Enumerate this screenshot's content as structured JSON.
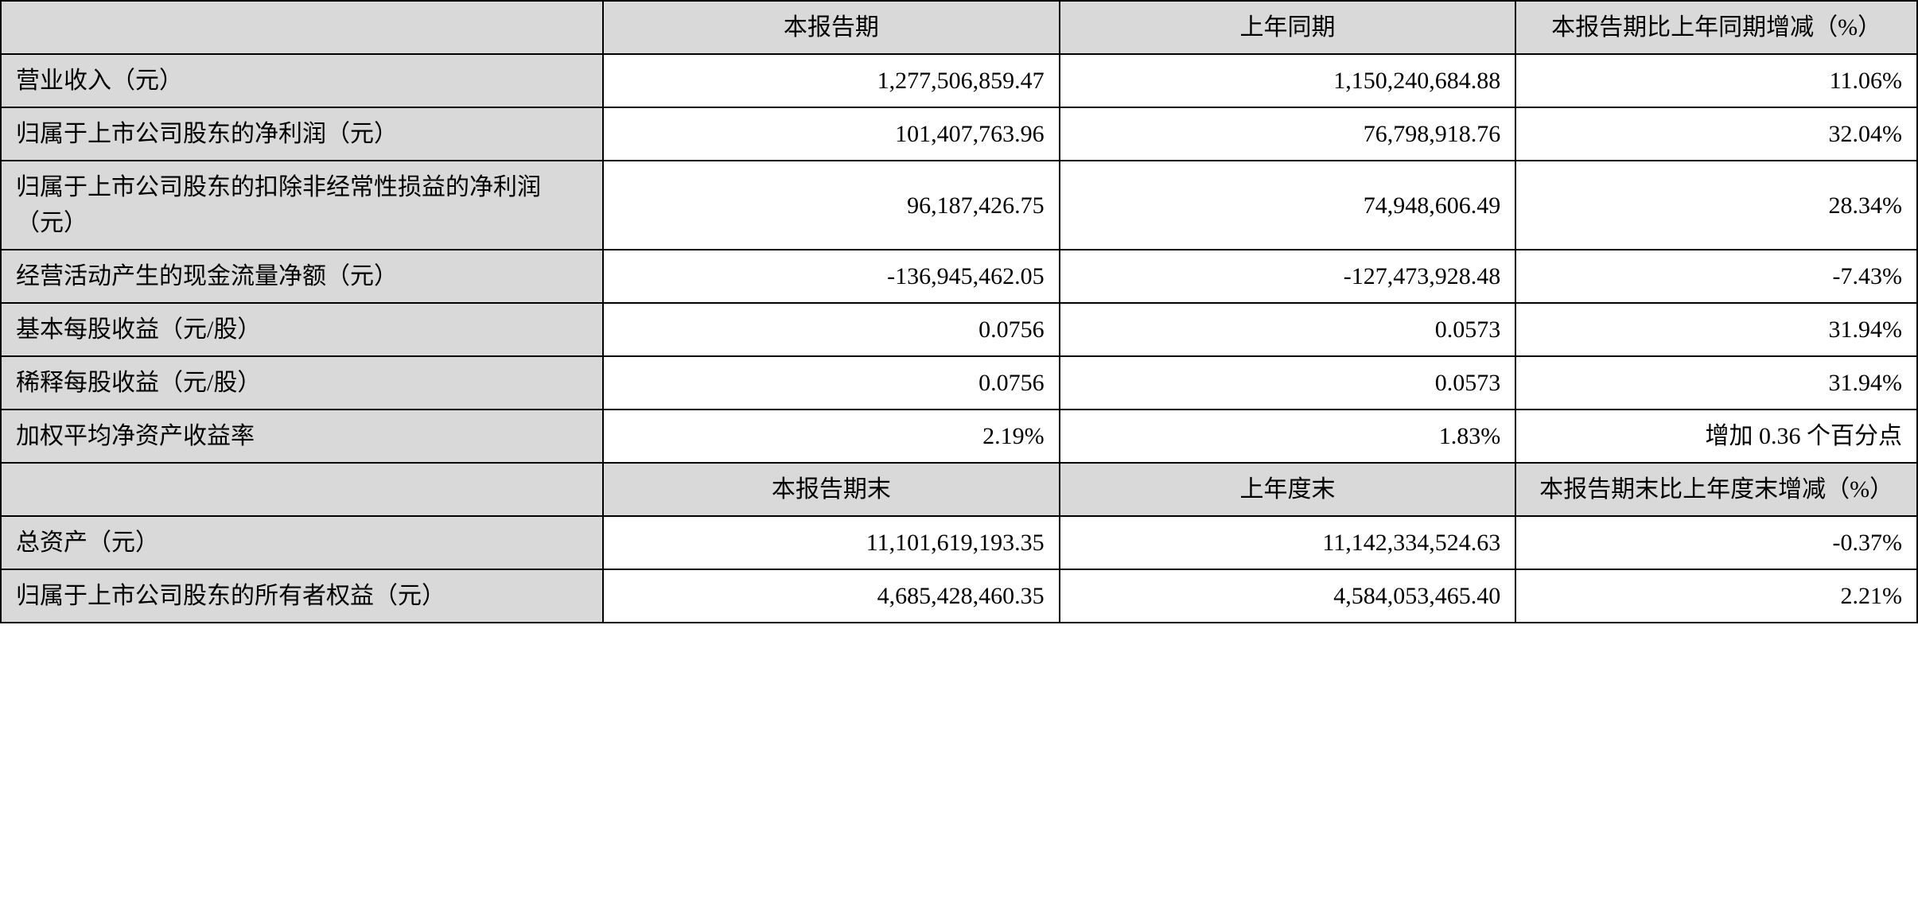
{
  "table": {
    "background_color": "#ffffff",
    "header_bg": "#d9d9d9",
    "label_bg": "#d9d9d9",
    "border_color": "#000000",
    "font_family": "SimSun",
    "font_size_pt": 22,
    "header1": {
      "col1": "",
      "col2": "本报告期",
      "col3": "上年同期",
      "col4": "本报告期比上年同期增减（%）"
    },
    "rows1": [
      {
        "label": "营业收入（元）",
        "v1": "1,277,506,859.47",
        "v2": "1,150,240,684.88",
        "v3": "11.06%"
      },
      {
        "label": "归属于上市公司股东的净利润（元）",
        "v1": "101,407,763.96",
        "v2": "76,798,918.76",
        "v3": "32.04%"
      },
      {
        "label": "归属于上市公司股东的扣除非经常性损益的净利润（元）",
        "v1": "96,187,426.75",
        "v2": "74,948,606.49",
        "v3": "28.34%"
      },
      {
        "label": "经营活动产生的现金流量净额（元）",
        "v1": "-136,945,462.05",
        "v2": "-127,473,928.48",
        "v3": "-7.43%"
      },
      {
        "label": "基本每股收益（元/股）",
        "v1": "0.0756",
        "v2": "0.0573",
        "v3": "31.94%"
      },
      {
        "label": "稀释每股收益（元/股）",
        "v1": "0.0756",
        "v2": "0.0573",
        "v3": "31.94%"
      },
      {
        "label": "加权平均净资产收益率",
        "v1": "2.19%",
        "v2": "1.83%",
        "v3": "增加 0.36 个百分点"
      }
    ],
    "header2": {
      "col1": "",
      "col2": "本报告期末",
      "col3": "上年度末",
      "col4": "本报告期末比上年度末增减（%）"
    },
    "rows2": [
      {
        "label": "总资产（元）",
        "v1": "11,101,619,193.35",
        "v2": "11,142,334,524.63",
        "v3": "-0.37%"
      },
      {
        "label": "归属于上市公司股东的所有者权益（元）",
        "v1": "4,685,428,460.35",
        "v2": "4,584,053,465.40",
        "v3": "2.21%"
      }
    ]
  }
}
